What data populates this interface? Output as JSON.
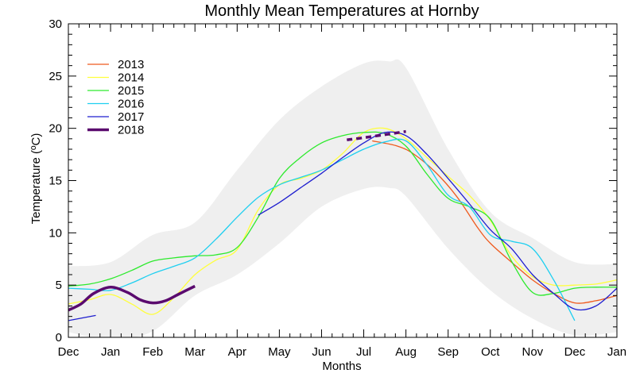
{
  "chart_data": {
    "type": "line",
    "title": "Monthly Mean Temperatures at Hornby",
    "xlabel": "Months",
    "ylabel": "Temperature (ºC)",
    "xlim": [
      0,
      13
    ],
    "ylim": [
      0,
      30
    ],
    "x_tick_labels": [
      "Dec",
      "Jan",
      "Feb",
      "Mar",
      "Apr",
      "May",
      "Jun",
      "Jul",
      "Aug",
      "Sep",
      "Oct",
      "Nov",
      "Dec",
      "Jan"
    ],
    "y_tick_labels": [
      "0",
      "5",
      "10",
      "15",
      "20",
      "25",
      "30"
    ],
    "legend_position": "top-left",
    "band": {
      "color": "#efefef",
      "x": [
        0,
        1,
        2,
        3,
        4,
        5,
        6,
        7,
        7.6,
        8,
        9,
        10,
        11,
        12,
        13
      ],
      "upper": [
        6.8,
        7.2,
        9.8,
        11,
        16,
        20.8,
        24,
        26.2,
        26.4,
        25.8,
        18,
        12,
        9.5,
        7.2,
        7
      ],
      "lower": [
        0.5,
        -0.2,
        0.6,
        4,
        6,
        9,
        12.5,
        14.2,
        14.3,
        13.5,
        8.5,
        4.5,
        1.8,
        0.2,
        0.5
      ]
    },
    "series": [
      {
        "name": "2013",
        "color": "#ef5a1e",
        "width": 1.3,
        "dash": false,
        "x": [
          7.2,
          7.8,
          8.2,
          8.7,
          9.2,
          9.7,
          10,
          10.5,
          11,
          11.5,
          12,
          12.5,
          13
        ],
        "y": [
          18.8,
          18.3,
          17.5,
          15.8,
          13.5,
          10.5,
          9,
          7.2,
          5.5,
          4.2,
          3.3,
          3.5,
          4
        ]
      },
      {
        "name": "2014",
        "color": "#ffff3c",
        "width": 1.3,
        "dash": false,
        "x": [
          0,
          0.5,
          1,
          1.5,
          2,
          2.5,
          3,
          3.5,
          4,
          4.5,
          5,
          5.5,
          6,
          6.5,
          7,
          7.5,
          8,
          8.5,
          9,
          9.5,
          10,
          10.5,
          11,
          11.5,
          12,
          12.5,
          13
        ],
        "y": [
          3.2,
          3.6,
          4.1,
          3.2,
          2.2,
          3.8,
          6,
          7.4,
          8.4,
          12.2,
          14.6,
          15.2,
          16,
          17.6,
          19.6,
          20,
          19,
          17.2,
          15.4,
          13.6,
          11.2,
          7.8,
          5.8,
          5,
          5,
          5.1,
          5.5
        ]
      },
      {
        "name": "2015",
        "color": "#2dea2d",
        "width": 1.3,
        "dash": false,
        "x": [
          0,
          0.5,
          1,
          1.5,
          2,
          2.5,
          3,
          3.5,
          4,
          4.5,
          5,
          5.5,
          6,
          6.5,
          7,
          7.5,
          8,
          8.5,
          9,
          9.5,
          10,
          10.5,
          11,
          11.5,
          12,
          12.5,
          13
        ],
        "y": [
          4.9,
          5.1,
          5.6,
          6.4,
          7.3,
          7.6,
          7.8,
          7.9,
          8.6,
          11.5,
          15.2,
          17.2,
          18.6,
          19.3,
          19.6,
          19.5,
          18.3,
          15.6,
          13.3,
          12.5,
          11.3,
          7.3,
          4.3,
          4.2,
          4.7,
          4.8,
          4.8
        ]
      },
      {
        "name": "2016",
        "color": "#1ecff0",
        "width": 1.3,
        "dash": false,
        "x": [
          0,
          0.5,
          1,
          1.5,
          2,
          2.5,
          3,
          3.5,
          4,
          4.5,
          5,
          5.5,
          6,
          6.5,
          7,
          7.5,
          8,
          8.5,
          9,
          9.5,
          10,
          10.5,
          11,
          11.5,
          12
        ],
        "y": [
          4.7,
          4.6,
          4.5,
          5.2,
          6.1,
          6.8,
          7.6,
          9.4,
          11.5,
          13.4,
          14.6,
          15.3,
          16,
          17,
          18,
          18.7,
          18.8,
          16.5,
          13.6,
          12.5,
          9.8,
          9.2,
          8.5,
          5.5,
          1.6
        ]
      },
      {
        "name": "2017",
        "color": "#1e1ecf",
        "width": 1.3,
        "dash": false,
        "segments": [
          {
            "x": [
              0,
              0.65
            ],
            "y": [
              1.6,
              2.1
            ]
          },
          {
            "x": [
              4.5,
              5,
              5.5,
              6,
              6.5,
              7,
              7.5,
              8,
              8.5,
              9,
              9.5,
              10,
              10.5,
              11,
              11.5,
              12,
              12.5,
              13
            ],
            "y": [
              11.7,
              12.9,
              14.3,
              15.7,
              17.2,
              18.6,
              19.6,
              19.3,
              17.5,
              15.2,
              12.8,
              10.3,
              8.5,
              6,
              4.2,
              2.7,
              3,
              4.7
            ]
          }
        ]
      },
      {
        "name": "2018",
        "color": "#5a0a6e",
        "width": 3.5,
        "dash": false,
        "segments": [
          {
            "x": [
              0,
              0.3,
              0.6,
              1,
              1.4,
              1.7,
              2,
              2.3,
              2.6,
              3
            ],
            "y": [
              2.6,
              3.2,
              4.2,
              4.8,
              4.3,
              3.6,
              3.3,
              3.5,
              4.1,
              4.9
            ]
          },
          {
            "x": [
              6.6,
              7,
              7.5,
              8
            ],
            "y": [
              18.9,
              19.1,
              19.4,
              19.7
            ],
            "dash": true
          }
        ]
      }
    ]
  }
}
